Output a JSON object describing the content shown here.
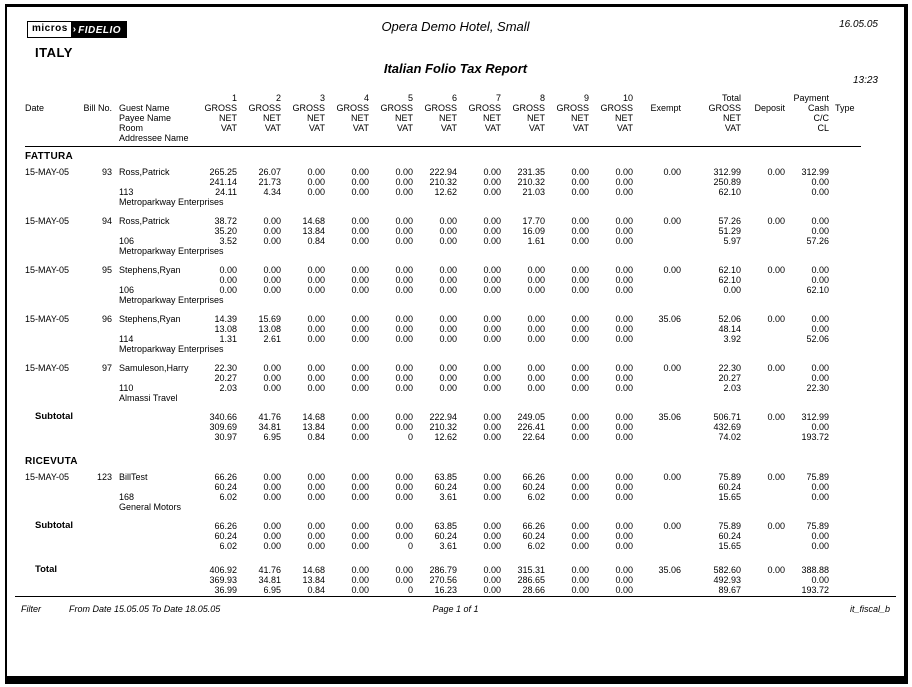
{
  "page": {
    "logo_left": "micros",
    "logo_arrow": "›",
    "logo_right": "FIDELIO",
    "country": "ITALY",
    "hotel": "Opera Demo Hotel, Small",
    "report_date": "16.05.05",
    "title": "Italian Folio Tax Report",
    "report_time": "13:23"
  },
  "table": {
    "col_numbers": [
      "1",
      "2",
      "3",
      "4",
      "5",
      "6",
      "7",
      "8",
      "9",
      "10"
    ],
    "headers": {
      "date": "Date",
      "bill": "Bill No.",
      "guest": "Guest Name",
      "payee": "Payee Name",
      "room": "Room",
      "addressee": "Addressee Name",
      "gross": "GROSS",
      "net": "NET",
      "vat": "VAT",
      "exempt": "Exempt",
      "total": "Total",
      "deposit": "Deposit",
      "payment": "Payment",
      "cash": "Cash",
      "cc": "C/C",
      "cl": "CL",
      "type": "Type"
    },
    "sections": [
      {
        "name": "FATTURA",
        "rows": [
          {
            "date": "15-MAY-05",
            "bill": "93",
            "guest": "Ross,Patrick",
            "room": "113",
            "addressee": "Metroparkway Enterprises",
            "gross": [
              "265.25",
              "26.07",
              "0.00",
              "0.00",
              "0.00",
              "222.94",
              "0.00",
              "231.35",
              "0.00",
              "0.00"
            ],
            "net": [
              "241.14",
              "21.73",
              "0.00",
              "0.00",
              "0.00",
              "210.32",
              "0.00",
              "210.32",
              "0.00",
              "0.00"
            ],
            "vat": [
              "24.11",
              "4.34",
              "0.00",
              "0.00",
              "0.00",
              "12.62",
              "0.00",
              "21.03",
              "0.00",
              "0.00"
            ],
            "exempt": "0.00",
            "total_gross": "312.99",
            "total_net": "250.89",
            "total_vat": "62.10",
            "deposit": "0.00",
            "pay_cash": "312.99",
            "pay_cc": "0.00",
            "pay_cl": "0.00"
          },
          {
            "date": "15-MAY-05",
            "bill": "94",
            "guest": "Ross,Patrick",
            "room": "106",
            "addressee": "Metroparkway Enterprises",
            "gross": [
              "38.72",
              "0.00",
              "14.68",
              "0.00",
              "0.00",
              "0.00",
              "0.00",
              "17.70",
              "0.00",
              "0.00"
            ],
            "net": [
              "35.20",
              "0.00",
              "13.84",
              "0.00",
              "0.00",
              "0.00",
              "0.00",
              "16.09",
              "0.00",
              "0.00"
            ],
            "vat": [
              "3.52",
              "0.00",
              "0.84",
              "0.00",
              "0.00",
              "0.00",
              "0.00",
              "1.61",
              "0.00",
              "0.00"
            ],
            "exempt": "0.00",
            "total_gross": "57.26",
            "total_net": "51.29",
            "total_vat": "5.97",
            "deposit": "0.00",
            "pay_cash": "0.00",
            "pay_cc": "0.00",
            "pay_cl": "57.26"
          },
          {
            "date": "15-MAY-05",
            "bill": "95",
            "guest": "Stephens,Ryan",
            "room": "106",
            "addressee": "Metroparkway Enterprises",
            "gross": [
              "0.00",
              "0.00",
              "0.00",
              "0.00",
              "0.00",
              "0.00",
              "0.00",
              "0.00",
              "0.00",
              "0.00"
            ],
            "net": [
              "0.00",
              "0.00",
              "0.00",
              "0.00",
              "0.00",
              "0.00",
              "0.00",
              "0.00",
              "0.00",
              "0.00"
            ],
            "vat": [
              "0.00",
              "0.00",
              "0.00",
              "0.00",
              "0.00",
              "0.00",
              "0.00",
              "0.00",
              "0.00",
              "0.00"
            ],
            "exempt": "0.00",
            "total_gross": "62.10",
            "total_net": "62.10",
            "total_vat": "0.00",
            "deposit": "0.00",
            "pay_cash": "0.00",
            "pay_cc": "0.00",
            "pay_cl": "62.10"
          },
          {
            "date": "15-MAY-05",
            "bill": "96",
            "guest": "Stephens,Ryan",
            "room": "114",
            "addressee": "Metroparkway Enterprises",
            "gross": [
              "14.39",
              "15.69",
              "0.00",
              "0.00",
              "0.00",
              "0.00",
              "0.00",
              "0.00",
              "0.00",
              "0.00"
            ],
            "net": [
              "13.08",
              "13.08",
              "0.00",
              "0.00",
              "0.00",
              "0.00",
              "0.00",
              "0.00",
              "0.00",
              "0.00"
            ],
            "vat": [
              "1.31",
              "2.61",
              "0.00",
              "0.00",
              "0.00",
              "0.00",
              "0.00",
              "0.00",
              "0.00",
              "0.00"
            ],
            "exempt": "35.06",
            "total_gross": "52.06",
            "total_net": "48.14",
            "total_vat": "3.92",
            "deposit": "0.00",
            "pay_cash": "0.00",
            "pay_cc": "0.00",
            "pay_cl": "52.06"
          },
          {
            "date": "15-MAY-05",
            "bill": "97",
            "guest": "Samuleson,Harry",
            "room": "110",
            "addressee": "Almassi Travel",
            "gross": [
              "22.30",
              "0.00",
              "0.00",
              "0.00",
              "0.00",
              "0.00",
              "0.00",
              "0.00",
              "0.00",
              "0.00"
            ],
            "net": [
              "20.27",
              "0.00",
              "0.00",
              "0.00",
              "0.00",
              "0.00",
              "0.00",
              "0.00",
              "0.00",
              "0.00"
            ],
            "vat": [
              "2.03",
              "0.00",
              "0.00",
              "0.00",
              "0.00",
              "0.00",
              "0.00",
              "0.00",
              "0.00",
              "0.00"
            ],
            "exempt": "0.00",
            "total_gross": "22.30",
            "total_net": "20.27",
            "total_vat": "2.03",
            "deposit": "0.00",
            "pay_cash": "0.00",
            "pay_cc": "0.00",
            "pay_cl": "22.30"
          }
        ],
        "subtotal": {
          "label": "Subtotal",
          "gross": [
            "340.66",
            "41.76",
            "14.68",
            "0.00",
            "0.00",
            "222.94",
            "0.00",
            "249.05",
            "0.00",
            "0.00"
          ],
          "net": [
            "309.69",
            "34.81",
            "13.84",
            "0.00",
            "0.00",
            "210.32",
            "0.00",
            "226.41",
            "0.00",
            "0.00"
          ],
          "vat": [
            "30.97",
            "6.95",
            "0.84",
            "0.00",
            "0",
            "12.62",
            "0.00",
            "22.64",
            "0.00",
            "0.00"
          ],
          "exempt": "35.06",
          "total_gross": "506.71",
          "total_net": "432.69",
          "total_vat": "74.02",
          "deposit": "0.00",
          "pay_cash": "312.99",
          "pay_cc": "0.00",
          "pay_cl": "193.72"
        }
      },
      {
        "name": "RICEVUTA",
        "rows": [
          {
            "date": "15-MAY-05",
            "bill": "123",
            "guest": "BillTest",
            "room": "168",
            "addressee": "General Motors",
            "gross": [
              "66.26",
              "0.00",
              "0.00",
              "0.00",
              "0.00",
              "63.85",
              "0.00",
              "66.26",
              "0.00",
              "0.00"
            ],
            "net": [
              "60.24",
              "0.00",
              "0.00",
              "0.00",
              "0.00",
              "60.24",
              "0.00",
              "60.24",
              "0.00",
              "0.00"
            ],
            "vat": [
              "6.02",
              "0.00",
              "0.00",
              "0.00",
              "0.00",
              "3.61",
              "0.00",
              "6.02",
              "0.00",
              "0.00"
            ],
            "exempt": "0.00",
            "total_gross": "75.89",
            "total_net": "60.24",
            "total_vat": "15.65",
            "deposit": "0.00",
            "pay_cash": "75.89",
            "pay_cc": "0.00",
            "pay_cl": "0.00"
          }
        ],
        "subtotal": {
          "label": "Subtotal",
          "gross": [
            "66.26",
            "0.00",
            "0.00",
            "0.00",
            "0.00",
            "63.85",
            "0.00",
            "66.26",
            "0.00",
            "0.00"
          ],
          "net": [
            "60.24",
            "0.00",
            "0.00",
            "0.00",
            "0.00",
            "60.24",
            "0.00",
            "60.24",
            "0.00",
            "0.00"
          ],
          "vat": [
            "6.02",
            "0.00",
            "0.00",
            "0.00",
            "0",
            "3.61",
            "0.00",
            "6.02",
            "0.00",
            "0.00"
          ],
          "exempt": "0.00",
          "total_gross": "75.89",
          "total_net": "60.24",
          "total_vat": "15.65",
          "deposit": "0.00",
          "pay_cash": "75.89",
          "pay_cc": "0.00",
          "pay_cl": "0.00"
        }
      }
    ],
    "grand_total": {
      "label": "Total",
      "gross": [
        "406.92",
        "41.76",
        "14.68",
        "0.00",
        "0.00",
        "286.79",
        "0.00",
        "315.31",
        "0.00",
        "0.00"
      ],
      "net": [
        "369.93",
        "34.81",
        "13.84",
        "0.00",
        "0.00",
        "270.56",
        "0.00",
        "286.65",
        "0.00",
        "0.00"
      ],
      "vat": [
        "36.99",
        "6.95",
        "0.84",
        "0.00",
        "0",
        "16.23",
        "0.00",
        "28.66",
        "0.00",
        "0.00"
      ],
      "exempt": "35.06",
      "total_gross": "582.60",
      "total_net": "492.93",
      "total_vat": "89.67",
      "deposit": "0.00",
      "pay_cash": "388.88",
      "pay_cc": "0.00",
      "pay_cl": "193.72"
    }
  },
  "footer": {
    "filter_label": "Filter",
    "filter_value": "From Date 15.05.05  To Date 18.05.05",
    "page": "Page 1 of 1",
    "report_id": "it_fiscal_b"
  }
}
